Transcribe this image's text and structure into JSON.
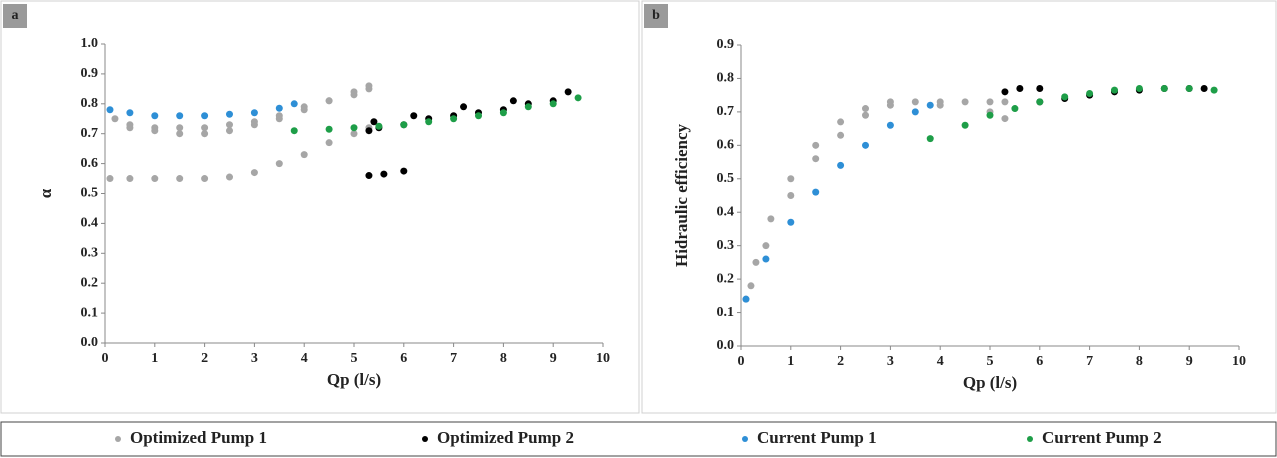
{
  "chart_data": [
    {
      "type": "scatter",
      "panel": "a",
      "ylabel": "α",
      "xlabel": "Qp (l/s)",
      "xlim": [
        0,
        10
      ],
      "xticks": [
        0,
        1,
        2,
        3,
        4,
        5,
        6,
        7,
        8,
        9,
        10
      ],
      "ylim": [
        0,
        1.0
      ],
      "yticks": [
        {
          "value": 0,
          "label": "0.0"
        },
        0.1,
        0.2,
        0.3,
        0.4,
        0.5,
        0.6,
        0.7,
        0.8,
        0.9,
        {
          "value": 1.0,
          "label": "1.0"
        }
      ],
      "series": [
        {
          "name": "Optimized Pump 1",
          "color": "#a6a6a6",
          "x": [
            0.1,
            0.5,
            1,
            1.5,
            2,
            2.5,
            3,
            3.5,
            4,
            4.5,
            5,
            5.3,
            0.2,
            0.5,
            1,
            1.5,
            2,
            2.5,
            3,
            3.5,
            4,
            4.5,
            5,
            5.3,
            0.5,
            1,
            1.5,
            2,
            2.5,
            3,
            3.5,
            4,
            4.5,
            5,
            5.3
          ],
          "values": [
            0.55,
            0.55,
            0.55,
            0.55,
            0.55,
            0.555,
            0.57,
            0.6,
            0.63,
            0.67,
            0.7,
            0.72,
            0.75,
            0.73,
            0.71,
            0.7,
            0.7,
            0.71,
            0.73,
            0.75,
            0.78,
            0.81,
            0.84,
            0.86,
            0.72,
            0.72,
            0.72,
            0.72,
            0.73,
            0.74,
            0.76,
            0.79,
            0.81,
            0.83,
            0.85
          ]
        },
        {
          "name": "Optimized Pump 2",
          "color": "#000000",
          "x": [
            5.3,
            5.5,
            6,
            6.5,
            7,
            7.5,
            8,
            8.5,
            9,
            9.3,
            5.4,
            6.2,
            7.2,
            8.2,
            5.3,
            5.6,
            6
          ],
          "values": [
            0.71,
            0.72,
            0.73,
            0.75,
            0.76,
            0.77,
            0.78,
            0.8,
            0.81,
            0.84,
            0.74,
            0.76,
            0.79,
            0.81,
            0.56,
            0.565,
            0.575
          ]
        },
        {
          "name": "Current Pump 1",
          "color": "#2e8fd6",
          "x": [
            0.1,
            0.5,
            1,
            1.5,
            2,
            2.5,
            3,
            3.5,
            3.8
          ],
          "values": [
            0.78,
            0.77,
            0.76,
            0.76,
            0.76,
            0.765,
            0.77,
            0.785,
            0.8
          ]
        },
        {
          "name": "Current Pump 2",
          "color": "#1e9e48",
          "x": [
            3.8,
            4.5,
            5,
            5.5,
            6,
            6.5,
            7,
            7.5,
            8,
            8.5,
            9,
            9.5
          ],
          "values": [
            0.71,
            0.715,
            0.72,
            0.725,
            0.73,
            0.74,
            0.75,
            0.76,
            0.77,
            0.79,
            0.8,
            0.82
          ]
        }
      ]
    },
    {
      "type": "scatter",
      "panel": "b",
      "ylabel": "Hidraulic efficiency",
      "xlabel": "Qp (l/s)",
      "xlim": [
        0,
        10
      ],
      "xticks": [
        0,
        1,
        2,
        3,
        4,
        5,
        6,
        7,
        8,
        9,
        10
      ],
      "ylim": [
        0,
        0.9
      ],
      "yticks": [
        {
          "value": 0,
          "label": "0.0"
        },
        0.1,
        0.2,
        0.3,
        0.4,
        0.5,
        0.6,
        0.7,
        0.8,
        0.9
      ],
      "series": [
        {
          "color": "#a6a6a6",
          "x": [
            0.1,
            0.3,
            0.6,
            1,
            1.5,
            2,
            2.5,
            3,
            3.5,
            4,
            4.5,
            5,
            5.3,
            0.2,
            0.5,
            1,
            1.5,
            2,
            2.5,
            3,
            4,
            5,
            5.3
          ],
          "values": [
            0.14,
            0.25,
            0.38,
            0.5,
            0.6,
            0.67,
            0.71,
            0.73,
            0.73,
            0.73,
            0.73,
            0.73,
            0.73,
            0.18,
            0.3,
            0.45,
            0.56,
            0.63,
            0.69,
            0.72,
            0.72,
            0.7,
            0.68
          ]
        },
        {
          "color": "#000000",
          "x": [
            5.3,
            5.6,
            6,
            6,
            6.5,
            7,
            7.5,
            8,
            8.5,
            9,
            9.3
          ],
          "values": [
            0.76,
            0.77,
            0.77,
            0.73,
            0.74,
            0.75,
            0.76,
            0.765,
            0.77,
            0.77,
            0.77
          ]
        },
        {
          "color": "#2e8fd6",
          "x": [
            0.1,
            0.5,
            1,
            1.5,
            2,
            2.5,
            3,
            3.5,
            3.8
          ],
          "values": [
            0.14,
            0.26,
            0.37,
            0.46,
            0.54,
            0.6,
            0.66,
            0.7,
            0.72
          ]
        },
        {
          "color": "#1e9e48",
          "x": [
            3.8,
            4.5,
            5,
            5.5,
            6,
            6.5,
            7,
            7.5,
            8,
            8.5,
            9,
            9.5
          ],
          "values": [
            0.62,
            0.66,
            0.69,
            0.71,
            0.73,
            0.745,
            0.755,
            0.765,
            0.77,
            0.77,
            0.77,
            0.765
          ]
        }
      ]
    }
  ]
}
